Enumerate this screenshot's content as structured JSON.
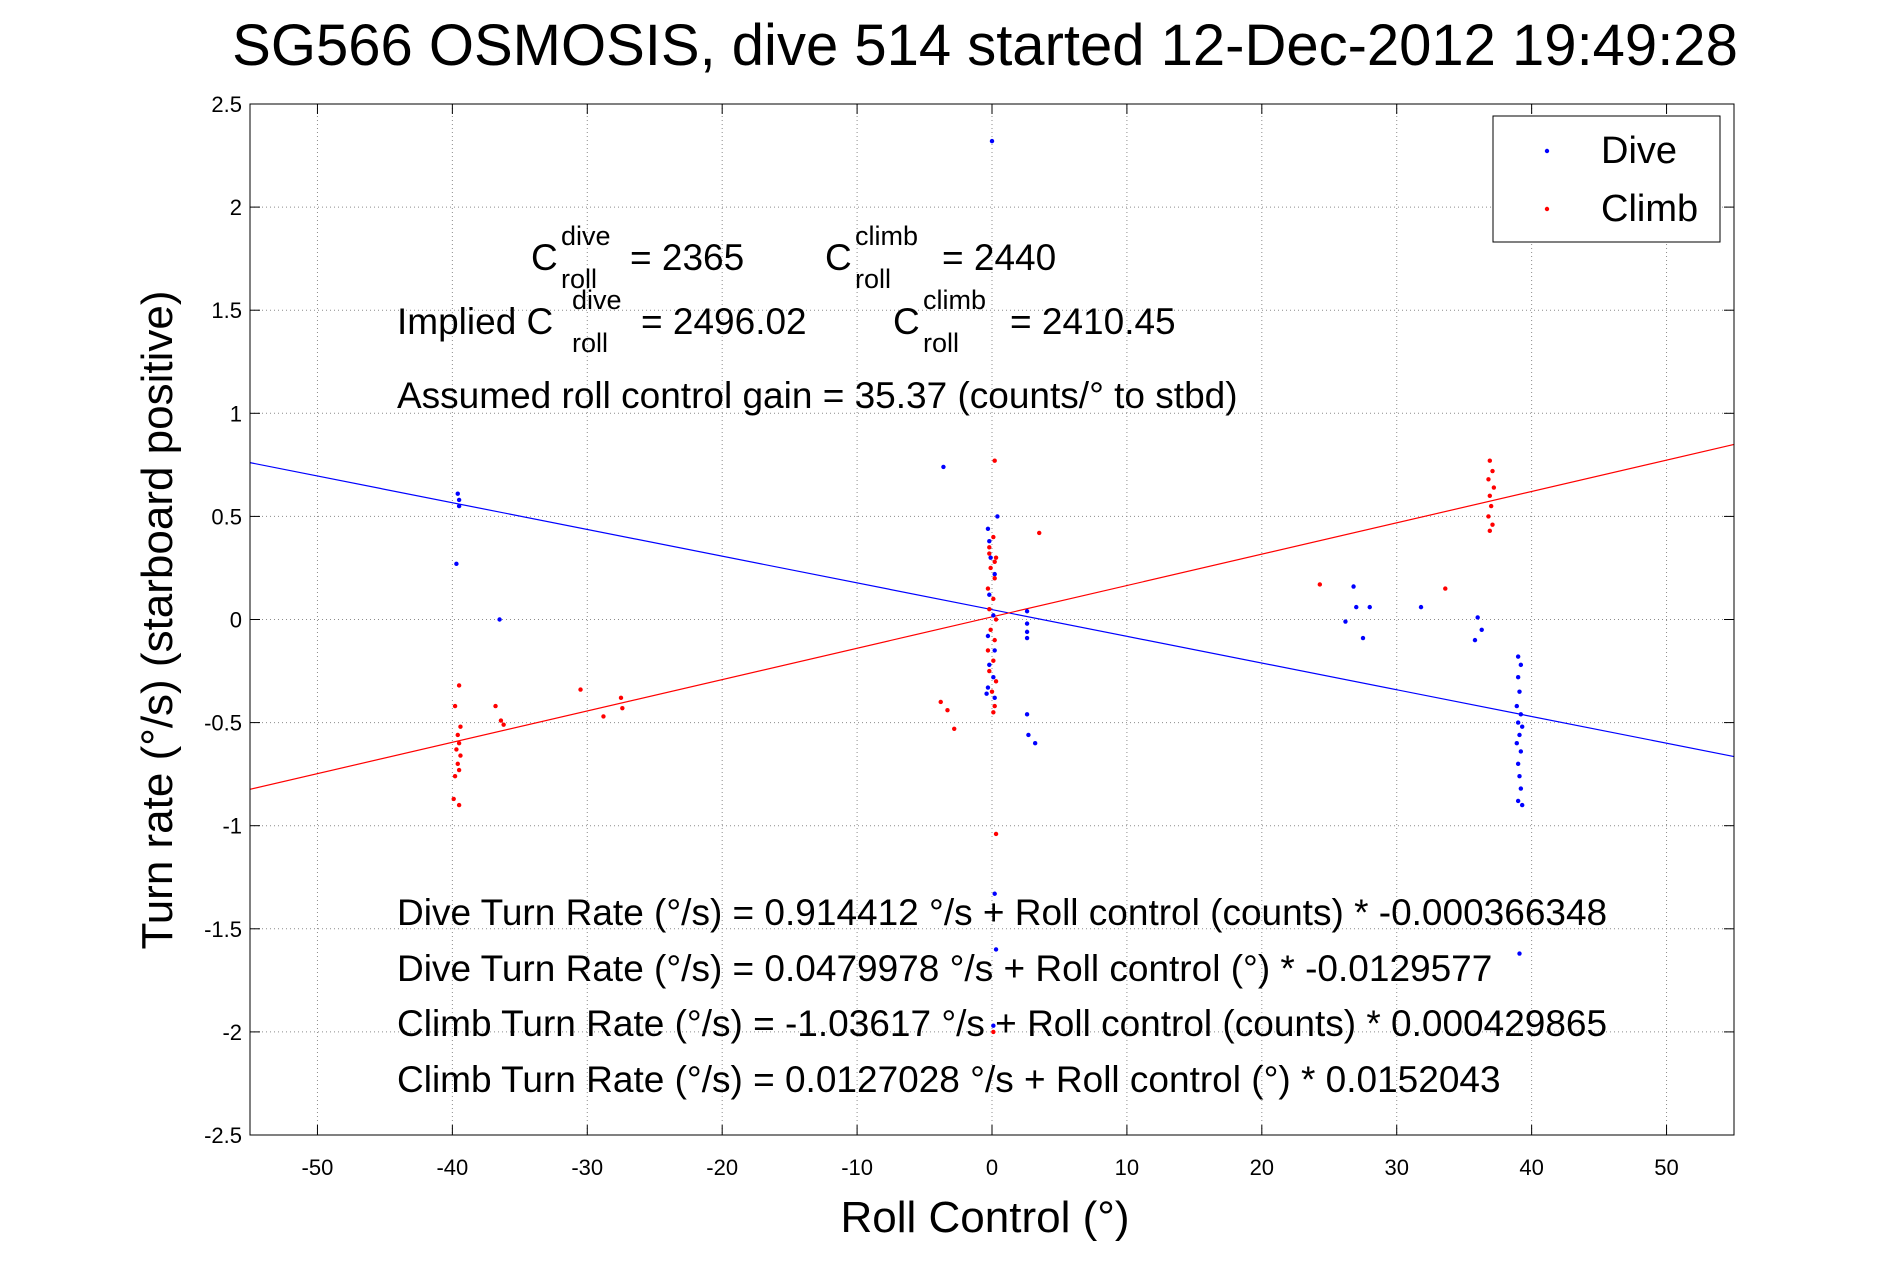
{
  "chart_data": {
    "type": "scatter",
    "title": "SG566 OSMOSIS, dive 514 started 12-Dec-2012 19:49:28",
    "xlabel": "Roll Control (°)",
    "ylabel": "Turn rate (°/s) (starboard positive)",
    "xlim": [
      -55,
      55
    ],
    "ylim": [
      -2.5,
      2.5
    ],
    "xticks": [
      -50,
      -40,
      -30,
      -20,
      -10,
      0,
      10,
      20,
      30,
      40,
      50
    ],
    "yticks": [
      -2.5,
      -2,
      -1.5,
      -1,
      -0.5,
      0,
      0.5,
      1,
      1.5,
      2,
      2.5
    ],
    "xtick_labels": [
      "-50",
      "-40",
      "-30",
      "-20",
      "-10",
      "0",
      "10",
      "20",
      "30",
      "40",
      "50"
    ],
    "ytick_labels": [
      "-2.5",
      "-2",
      "-1.5",
      "-1",
      "-0.5",
      "0",
      "0.5",
      "1",
      "1.5",
      "2",
      "2.5"
    ],
    "grid": true,
    "legend_position": "top-right",
    "series": [
      {
        "name": "Dive",
        "color": "#0000ff",
        "points": [
          [
            -39.6,
            0.61
          ],
          [
            -39.5,
            0.58
          ],
          [
            -39.5,
            0.55
          ],
          [
            -39.7,
            0.27
          ],
          [
            -36.5,
            0.0
          ],
          [
            -3.6,
            0.74
          ],
          [
            0.0,
            2.32
          ],
          [
            0.2,
            -1.33
          ],
          [
            0.3,
            -1.6
          ],
          [
            0.1,
            -1.97
          ],
          [
            -0.3,
            0.44
          ],
          [
            -0.2,
            0.38
          ],
          [
            -0.1,
            0.3
          ],
          [
            0.2,
            0.22
          ],
          [
            -0.2,
            0.12
          ],
          [
            0.1,
            0.02
          ],
          [
            -0.3,
            -0.08
          ],
          [
            0.2,
            -0.15
          ],
          [
            -0.2,
            -0.22
          ],
          [
            0.1,
            -0.28
          ],
          [
            -0.3,
            -0.33
          ],
          [
            0.2,
            -0.38
          ],
          [
            0.4,
            0.5
          ],
          [
            -0.4,
            -0.36
          ],
          [
            2.6,
            0.04
          ],
          [
            2.6,
            -0.02
          ],
          [
            2.6,
            -0.06
          ],
          [
            2.6,
            -0.09
          ],
          [
            2.6,
            -0.46
          ],
          [
            2.7,
            -0.56
          ],
          [
            3.2,
            -0.6
          ],
          [
            26.2,
            -0.01
          ],
          [
            26.8,
            0.16
          ],
          [
            27.0,
            0.06
          ],
          [
            27.5,
            -0.09
          ],
          [
            28.0,
            0.06
          ],
          [
            31.8,
            0.06
          ],
          [
            35.8,
            -0.1
          ],
          [
            36.0,
            0.01
          ],
          [
            36.3,
            -0.05
          ],
          [
            39.0,
            -0.18
          ],
          [
            39.2,
            -0.22
          ],
          [
            39.0,
            -0.28
          ],
          [
            39.1,
            -0.35
          ],
          [
            38.9,
            -0.42
          ],
          [
            39.2,
            -0.46
          ],
          [
            39.0,
            -0.5
          ],
          [
            39.3,
            -0.52
          ],
          [
            39.1,
            -0.56
          ],
          [
            38.9,
            -0.6
          ],
          [
            39.2,
            -0.64
          ],
          [
            39.0,
            -0.7
          ],
          [
            39.1,
            -0.76
          ],
          [
            39.2,
            -0.82
          ],
          [
            39.0,
            -0.88
          ],
          [
            39.3,
            -0.9
          ],
          [
            39.1,
            -1.62
          ]
        ]
      },
      {
        "name": "Climb",
        "color": "#ff0000",
        "points": [
          [
            -39.5,
            -0.32
          ],
          [
            -39.8,
            -0.42
          ],
          [
            -39.4,
            -0.52
          ],
          [
            -39.6,
            -0.56
          ],
          [
            -39.5,
            -0.6
          ],
          [
            -39.7,
            -0.63
          ],
          [
            -39.4,
            -0.66
          ],
          [
            -39.6,
            -0.7
          ],
          [
            -39.5,
            -0.73
          ],
          [
            -39.8,
            -0.76
          ],
          [
            -39.9,
            -0.87
          ],
          [
            -39.5,
            -0.9
          ],
          [
            -36.8,
            -0.42
          ],
          [
            -36.4,
            -0.49
          ],
          [
            -36.2,
            -0.51
          ],
          [
            -30.5,
            -0.34
          ],
          [
            -28.8,
            -0.47
          ],
          [
            -27.5,
            -0.38
          ],
          [
            -27.4,
            -0.43
          ],
          [
            -3.8,
            -0.4
          ],
          [
            -3.3,
            -0.44
          ],
          [
            -2.8,
            -0.53
          ],
          [
            0.2,
            0.77
          ],
          [
            0.3,
            -1.04
          ],
          [
            0.1,
            -2.0
          ],
          [
            3.5,
            0.42
          ],
          [
            0.1,
            0.4
          ],
          [
            -0.2,
            0.35
          ],
          [
            0.3,
            0.3
          ],
          [
            -0.1,
            0.25
          ],
          [
            0.2,
            0.2
          ],
          [
            -0.3,
            0.15
          ],
          [
            0.1,
            0.1
          ],
          [
            -0.2,
            0.05
          ],
          [
            0.3,
            0.0
          ],
          [
            -0.1,
            -0.05
          ],
          [
            0.2,
            -0.1
          ],
          [
            -0.3,
            -0.15
          ],
          [
            0.1,
            -0.2
          ],
          [
            -0.2,
            -0.25
          ],
          [
            0.3,
            -0.3
          ],
          [
            0.0,
            -0.35
          ],
          [
            0.2,
            0.28
          ],
          [
            -0.2,
            0.32
          ],
          [
            0.2,
            -0.42
          ],
          [
            0.1,
            -0.45
          ],
          [
            24.3,
            0.17
          ],
          [
            33.6,
            0.15
          ],
          [
            36.9,
            0.77
          ],
          [
            37.1,
            0.72
          ],
          [
            36.8,
            0.68
          ],
          [
            37.2,
            0.64
          ],
          [
            36.9,
            0.6
          ],
          [
            37.0,
            0.55
          ],
          [
            36.8,
            0.5
          ],
          [
            37.1,
            0.46
          ],
          [
            36.9,
            0.43
          ]
        ]
      }
    ],
    "fit_lines": [
      {
        "name": "Dive fit",
        "color": "#0000ff",
        "intercept": 0.0479978,
        "slope": -0.0129577
      },
      {
        "name": "Climb fit",
        "color": "#ff0000",
        "intercept": 0.0127028,
        "slope": 0.0152043
      }
    ],
    "annotations": {
      "c_dive": {
        "base": "C",
        "sup": "dive",
        "sub": "roll",
        "value": "= 2365"
      },
      "c_climb": {
        "base": "C",
        "sup": "climb",
        "sub": "roll",
        "value": "= 2440"
      },
      "implied_prefix": "Implied C",
      "implied_dive": {
        "sup": "dive",
        "sub": "roll",
        "value": "= 2496.02"
      },
      "implied_climb": {
        "base": "C",
        "sup": "climb",
        "sub": "roll",
        "value": "= 2410.45"
      },
      "gain": "Assumed roll control gain = 35.37 (counts/° to stbd)",
      "equations": [
        "Dive Turn Rate (°/s) = 0.914412 °/s + Roll control (counts) * -0.000366348",
        "Dive Turn Rate (°/s) = 0.0479978 °/s + Roll control (°) * -0.0129577",
        "Climb Turn Rate (°/s) = -1.03617 °/s + Roll control (counts) * 0.000429865",
        "Climb Turn Rate (°/s) = 0.0127028 °/s + Roll control (°) * 0.0152043"
      ]
    }
  }
}
